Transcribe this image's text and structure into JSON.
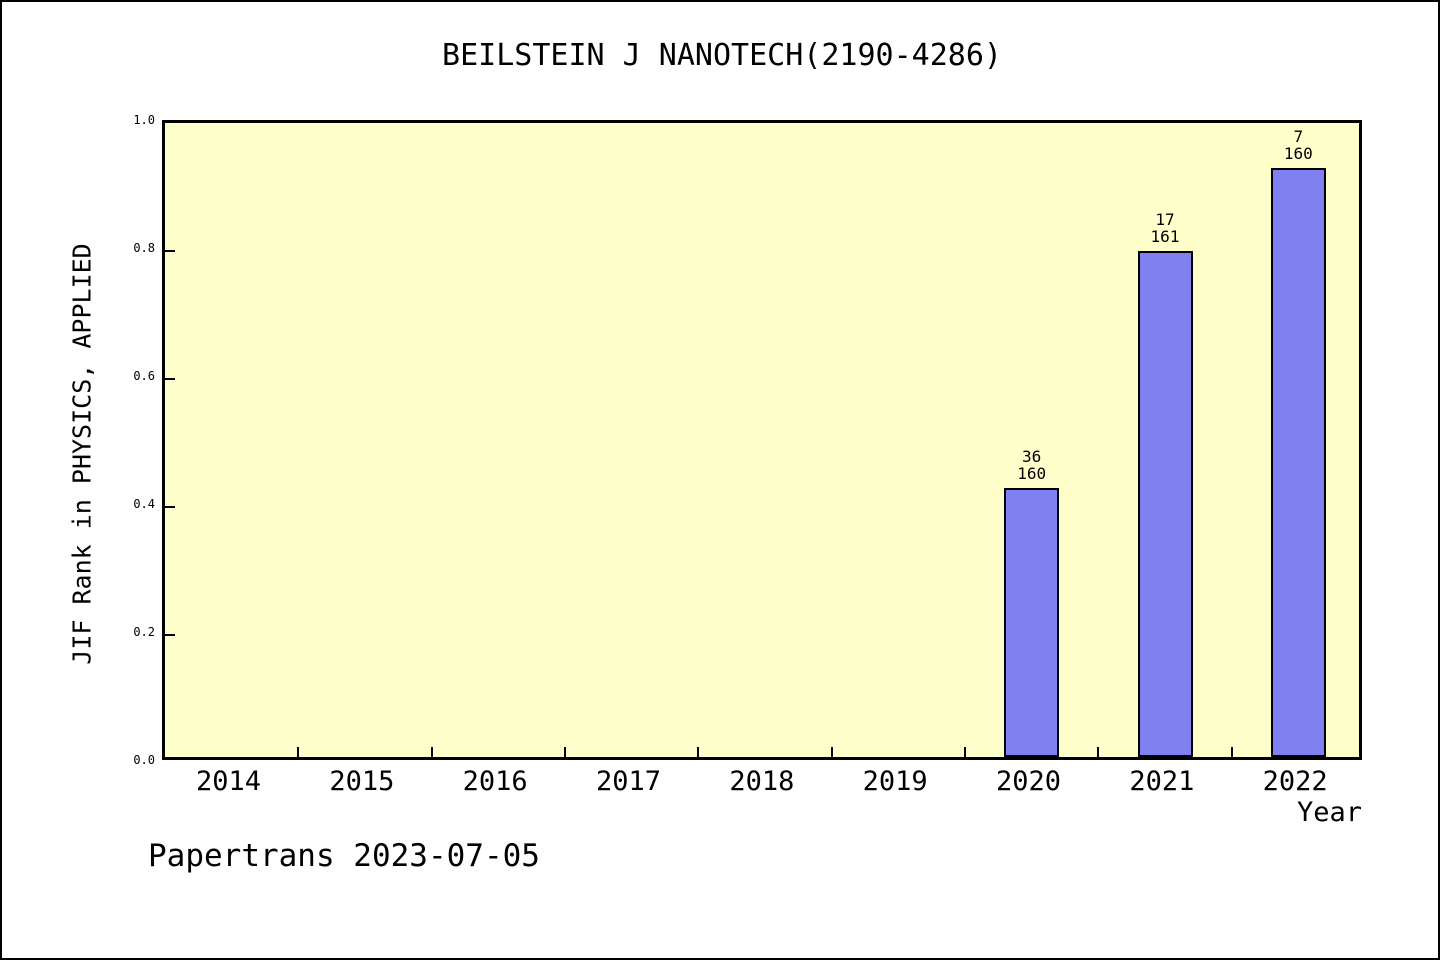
{
  "page": {
    "footer": "Papertrans 2023-07-05"
  },
  "chart_data": {
    "type": "bar",
    "title": "BEILSTEIN J NANOTECH(2190-4286)",
    "xlabel": "Year",
    "ylabel": "JIF Rank in PHYSICS, APPLIED",
    "categories": [
      "2014",
      "2015",
      "2016",
      "2017",
      "2018",
      "2019",
      "2020",
      "2021",
      "2022"
    ],
    "series": [
      {
        "name": "JIF Rank",
        "values": [
          null,
          null,
          null,
          null,
          null,
          null,
          0.42,
          0.79,
          0.92
        ]
      }
    ],
    "bar_annotations": [
      {
        "category": "2020",
        "rank": "36",
        "total": "160"
      },
      {
        "category": "2021",
        "rank": "17",
        "total": "161"
      },
      {
        "category": "2022",
        "rank": "7",
        "total": "160"
      }
    ],
    "ylim": [
      0.0,
      1.0
    ],
    "yticks": [
      "0.0",
      "0.2",
      "0.4",
      "0.6",
      "0.8",
      "1.0"
    ],
    "grid": "off",
    "legend": "none",
    "layout": "bars sit on x-axis, value labels stacked rank over total above each bar, x ticks at category boundaries pointing inward, y ticks pointing inward",
    "colors": {
      "bar_fill": "#8080f0",
      "bar_border": "#000000",
      "plot_background": "#ffffcc",
      "page_background": "#ffffff",
      "axis": "#000000",
      "text": "#000000"
    }
  }
}
